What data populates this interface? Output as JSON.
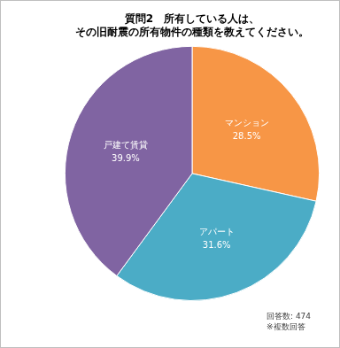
{
  "chart_data": {
    "type": "pie",
    "title": [
      "質問2　所有している人は、",
      "その旧耐震の所有物件の種類を教えてください。"
    ],
    "categories": [
      "マンション",
      "アパート",
      "戸建て賃貸"
    ],
    "values": [
      28.5,
      31.6,
      39.9
    ],
    "value_labels": [
      "28.5%",
      "31.6%",
      "39.9%"
    ],
    "colors": [
      "#f79646",
      "#4bacc6",
      "#8064a2"
    ],
    "data_labels": true,
    "annotations": [
      "回答数: 474",
      "※複数回答"
    ]
  }
}
